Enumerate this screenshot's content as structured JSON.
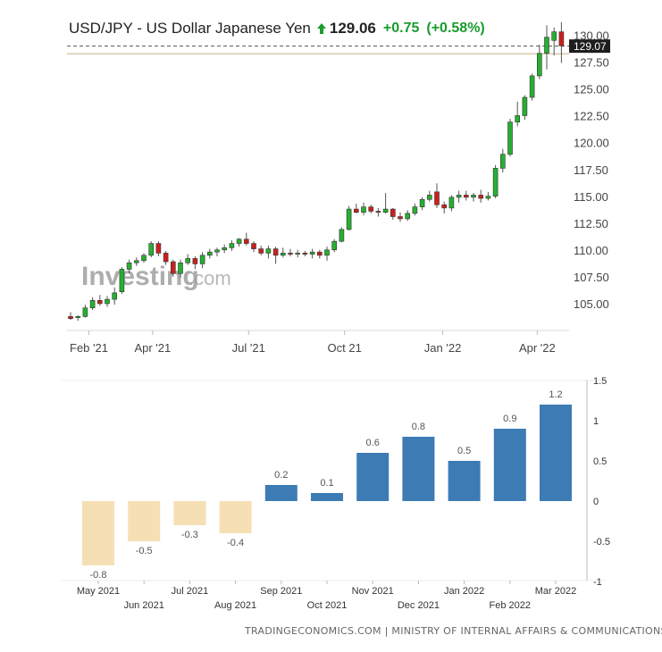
{
  "header": {
    "title": "USD/JPY - US Dollar Japanese Yen",
    "price": "129.06",
    "change": "+0.75",
    "change_pct": "(+0.58%)",
    "up_color": "#1a9c2e"
  },
  "watermark": {
    "brand": "Investing",
    "suffix": ".com"
  },
  "footer": {
    "text": "TRADINGECONOMICS.COM  |  MINISTRY OF INTERNAL AFFAIRS & COMMUNICATIONS"
  },
  "chart_data": [
    {
      "type": "candlestick",
      "title": "",
      "x_ticks": [
        {
          "label": "Feb '21",
          "week": 2.5
        },
        {
          "label": "Apr '21",
          "week": 11.2
        },
        {
          "label": "Jul '21",
          "week": 24.3
        },
        {
          "label": "Oct 21",
          "week": 37.4
        },
        {
          "label": "Jan '22",
          "week": 50.8
        },
        {
          "label": "Apr '22",
          "week": 63.7
        }
      ],
      "y_ticks": [
        "105.00",
        "107.50",
        "110.00",
        "112.50",
        "115.00",
        "117.50",
        "120.00",
        "122.50",
        "125.00",
        "127.50",
        "130.00"
      ],
      "ylim": [
        102.6,
        131.7
      ],
      "last_price_label": "129.07",
      "last_price": 129.07,
      "reference_level": 128.35,
      "candle_colors": {
        "up": "#26b030",
        "down": "#cc1f1f"
      },
      "candles": [
        {
          "o": 103.9,
          "h": 104.3,
          "l": 103.6,
          "c": 103.7
        },
        {
          "o": 103.8,
          "h": 104.0,
          "l": 103.5,
          "c": 103.9
        },
        {
          "o": 103.9,
          "h": 105.0,
          "l": 103.8,
          "c": 104.7
        },
        {
          "o": 104.7,
          "h": 105.7,
          "l": 104.5,
          "c": 105.4
        },
        {
          "o": 105.4,
          "h": 105.9,
          "l": 104.9,
          "c": 105.1
        },
        {
          "o": 105.1,
          "h": 105.8,
          "l": 104.8,
          "c": 105.5
        },
        {
          "o": 105.5,
          "h": 106.6,
          "l": 105.0,
          "c": 106.1
        },
        {
          "o": 106.2,
          "h": 108.5,
          "l": 106.0,
          "c": 108.3
        },
        {
          "o": 108.3,
          "h": 109.2,
          "l": 107.9,
          "c": 108.9
        },
        {
          "o": 108.9,
          "h": 109.4,
          "l": 108.6,
          "c": 109.1
        },
        {
          "o": 109.1,
          "h": 109.8,
          "l": 108.9,
          "c": 109.6
        },
        {
          "o": 109.6,
          "h": 110.9,
          "l": 109.4,
          "c": 110.7
        },
        {
          "o": 110.7,
          "h": 110.9,
          "l": 109.5,
          "c": 109.8
        },
        {
          "o": 109.8,
          "h": 110.0,
          "l": 108.7,
          "c": 109.0
        },
        {
          "o": 109.0,
          "h": 109.2,
          "l": 107.6,
          "c": 107.9
        },
        {
          "o": 107.9,
          "h": 109.2,
          "l": 107.5,
          "c": 108.9
        },
        {
          "o": 108.9,
          "h": 109.7,
          "l": 108.7,
          "c": 109.3
        },
        {
          "o": 109.3,
          "h": 109.5,
          "l": 108.3,
          "c": 108.8
        },
        {
          "o": 108.8,
          "h": 109.9,
          "l": 108.4,
          "c": 109.6
        },
        {
          "o": 109.6,
          "h": 110.2,
          "l": 109.3,
          "c": 109.9
        },
        {
          "o": 109.9,
          "h": 110.3,
          "l": 109.5,
          "c": 110.1
        },
        {
          "o": 110.1,
          "h": 110.6,
          "l": 109.8,
          "c": 110.3
        },
        {
          "o": 110.3,
          "h": 111.0,
          "l": 110.0,
          "c": 110.7
        },
        {
          "o": 110.7,
          "h": 111.2,
          "l": 110.4,
          "c": 111.1
        },
        {
          "o": 111.1,
          "h": 111.7,
          "l": 110.5,
          "c": 110.7
        },
        {
          "o": 110.7,
          "h": 110.9,
          "l": 109.9,
          "c": 110.2
        },
        {
          "o": 110.2,
          "h": 110.5,
          "l": 109.6,
          "c": 109.8
        },
        {
          "o": 109.8,
          "h": 110.5,
          "l": 109.3,
          "c": 110.2
        },
        {
          "o": 110.2,
          "h": 110.4,
          "l": 108.8,
          "c": 109.6
        },
        {
          "o": 109.6,
          "h": 110.3,
          "l": 109.4,
          "c": 109.8
        },
        {
          "o": 109.8,
          "h": 110.2,
          "l": 109.5,
          "c": 109.7
        },
        {
          "o": 109.7,
          "h": 110.1,
          "l": 109.4,
          "c": 109.8
        },
        {
          "o": 109.8,
          "h": 110.0,
          "l": 109.5,
          "c": 109.7
        },
        {
          "o": 109.7,
          "h": 110.2,
          "l": 109.3,
          "c": 109.9
        },
        {
          "o": 109.9,
          "h": 110.1,
          "l": 109.3,
          "c": 109.6
        },
        {
          "o": 109.6,
          "h": 110.4,
          "l": 109.1,
          "c": 110.1
        },
        {
          "o": 110.1,
          "h": 111.1,
          "l": 109.9,
          "c": 110.9
        },
        {
          "o": 110.9,
          "h": 112.2,
          "l": 110.8,
          "c": 112.0
        },
        {
          "o": 112.0,
          "h": 114.2,
          "l": 111.9,
          "c": 113.9
        },
        {
          "o": 113.9,
          "h": 114.4,
          "l": 113.5,
          "c": 113.6
        },
        {
          "o": 113.6,
          "h": 114.5,
          "l": 113.3,
          "c": 114.1
        },
        {
          "o": 114.1,
          "h": 114.3,
          "l": 113.5,
          "c": 113.7
        },
        {
          "o": 113.7,
          "h": 114.0,
          "l": 113.2,
          "c": 113.6
        },
        {
          "o": 113.6,
          "h": 115.4,
          "l": 113.5,
          "c": 113.9
        },
        {
          "o": 113.9,
          "h": 114.0,
          "l": 112.9,
          "c": 113.2
        },
        {
          "o": 113.2,
          "h": 113.6,
          "l": 112.7,
          "c": 113.0
        },
        {
          "o": 113.0,
          "h": 113.8,
          "l": 112.8,
          "c": 113.5
        },
        {
          "o": 113.5,
          "h": 114.4,
          "l": 113.3,
          "c": 114.1
        },
        {
          "o": 114.1,
          "h": 115.0,
          "l": 113.8,
          "c": 114.8
        },
        {
          "o": 114.8,
          "h": 115.6,
          "l": 114.6,
          "c": 115.2
        },
        {
          "o": 115.5,
          "h": 116.3,
          "l": 114.0,
          "c": 114.3
        },
        {
          "o": 114.3,
          "h": 114.6,
          "l": 113.5,
          "c": 114.0
        },
        {
          "o": 114.0,
          "h": 115.2,
          "l": 113.7,
          "c": 115.0
        },
        {
          "o": 115.0,
          "h": 115.6,
          "l": 114.5,
          "c": 115.2
        },
        {
          "o": 115.2,
          "h": 115.6,
          "l": 114.7,
          "c": 115.0
        },
        {
          "o": 115.0,
          "h": 115.4,
          "l": 114.6,
          "c": 115.2
        },
        {
          "o": 115.2,
          "h": 115.7,
          "l": 114.5,
          "c": 114.9
        },
        {
          "o": 114.9,
          "h": 115.5,
          "l": 114.7,
          "c": 115.1
        },
        {
          "o": 115.1,
          "h": 118.0,
          "l": 114.9,
          "c": 117.7
        },
        {
          "o": 117.7,
          "h": 119.5,
          "l": 117.3,
          "c": 119.0
        },
        {
          "o": 119.0,
          "h": 122.3,
          "l": 118.8,
          "c": 122.0
        },
        {
          "o": 122.0,
          "h": 123.9,
          "l": 121.6,
          "c": 122.6
        },
        {
          "o": 122.6,
          "h": 124.5,
          "l": 122.2,
          "c": 124.3
        },
        {
          "o": 124.3,
          "h": 126.5,
          "l": 124.0,
          "c": 126.3
        },
        {
          "o": 126.3,
          "h": 129.2,
          "l": 126.0,
          "c": 128.4
        },
        {
          "o": 128.4,
          "h": 131.0,
          "l": 126.9,
          "c": 129.9
        },
        {
          "o": 129.6,
          "h": 130.8,
          "l": 128.2,
          "c": 130.4
        },
        {
          "o": 130.4,
          "h": 131.3,
          "l": 127.5,
          "c": 129.1
        }
      ]
    },
    {
      "type": "bar",
      "title": "",
      "categories": [
        "May 2021",
        "Jun 2021",
        "Jul 2021",
        "Aug 2021",
        "Sep 2021",
        "Oct 2021",
        "Nov 2021",
        "Dec 2021",
        "Jan 2022",
        "Feb 2022",
        "Mar 2022"
      ],
      "values": [
        -0.8,
        -0.5,
        -0.3,
        -0.4,
        0.2,
        0.1,
        0.6,
        0.8,
        0.5,
        0.9,
        1.2
      ],
      "value_labels": [
        "-0.8",
        "-0.5",
        "-0.3",
        "-0.4",
        "0.2",
        "0.1",
        "0.6",
        "0.8",
        "0.5",
        "0.9",
        "1.2"
      ],
      "y_ticks": [
        "1.5",
        "1",
        "0.5",
        "0",
        "-0.5",
        "-1"
      ],
      "ylim": [
        -1,
        1.5
      ],
      "colors": {
        "positive": "#3d7bb5",
        "negative": "#f6dfb4"
      },
      "grid": false
    }
  ]
}
